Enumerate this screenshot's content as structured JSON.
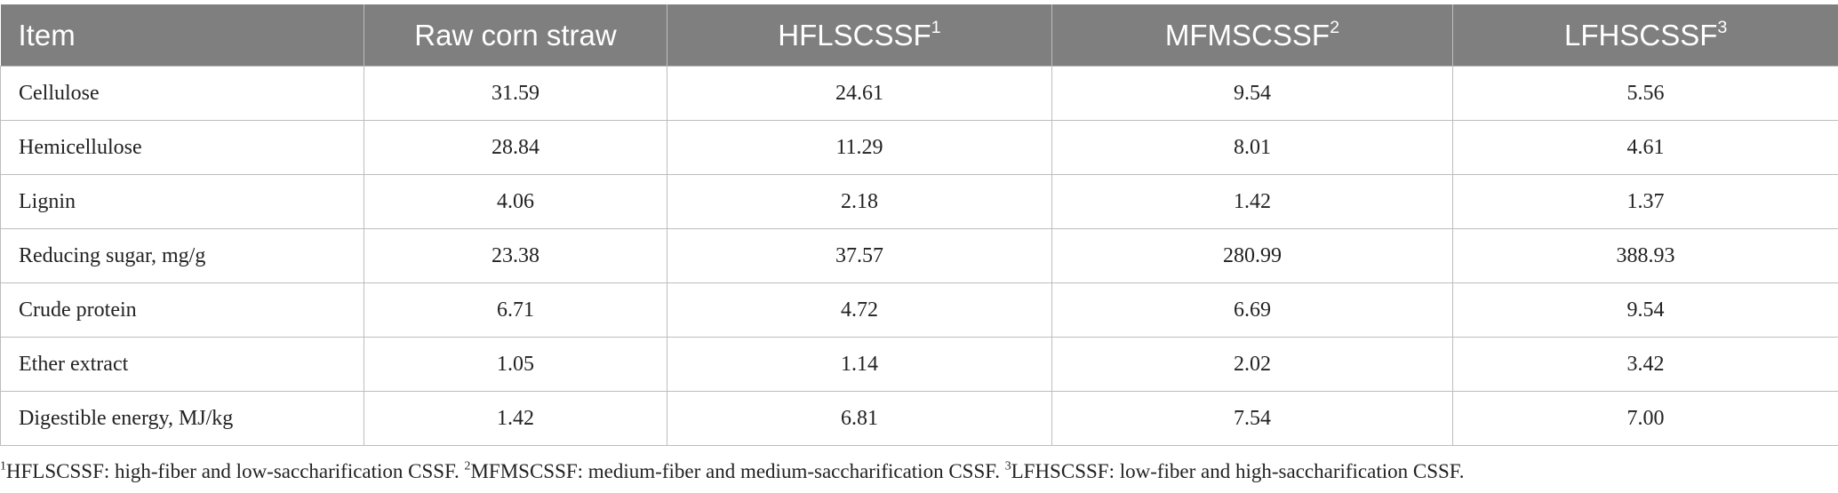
{
  "table": {
    "columns": [
      {
        "label": "Item"
      },
      {
        "label": "Raw corn straw"
      },
      {
        "label": "HFLSCSSF",
        "note": "1"
      },
      {
        "label": "MFMSCSSF",
        "note": "2"
      },
      {
        "label": "LFHSCSSF",
        "note": "3"
      }
    ],
    "rows": [
      [
        "Cellulose",
        "31.59",
        "24.61",
        "9.54",
        "5.56"
      ],
      [
        "Hemicellulose",
        "28.84",
        "11.29",
        "8.01",
        "4.61"
      ],
      [
        "Lignin",
        "4.06",
        "2.18",
        "1.42",
        "1.37"
      ],
      [
        "Reducing sugar, mg/g",
        "23.38",
        "37.57",
        "280.99",
        "388.93"
      ],
      [
        "Crude protein",
        "6.71",
        "4.72",
        "6.69",
        "9.54"
      ],
      [
        "Ether extract",
        "1.05",
        "1.14",
        "2.02",
        "3.42"
      ],
      [
        "Digestible energy, MJ/kg",
        "1.42",
        "6.81",
        "7.54",
        "7.00"
      ]
    ]
  },
  "footnotes": [
    {
      "mark": "1",
      "text": "HFLSCSSF: high-fiber and low-saccharification CSSF. "
    },
    {
      "mark": "2",
      "text": "MFMSCSSF: medium-fiber and medium-saccharification CSSF. "
    },
    {
      "mark": "3",
      "text": "LFHSCSSF: low-fiber and high-saccharification CSSF."
    }
  ]
}
